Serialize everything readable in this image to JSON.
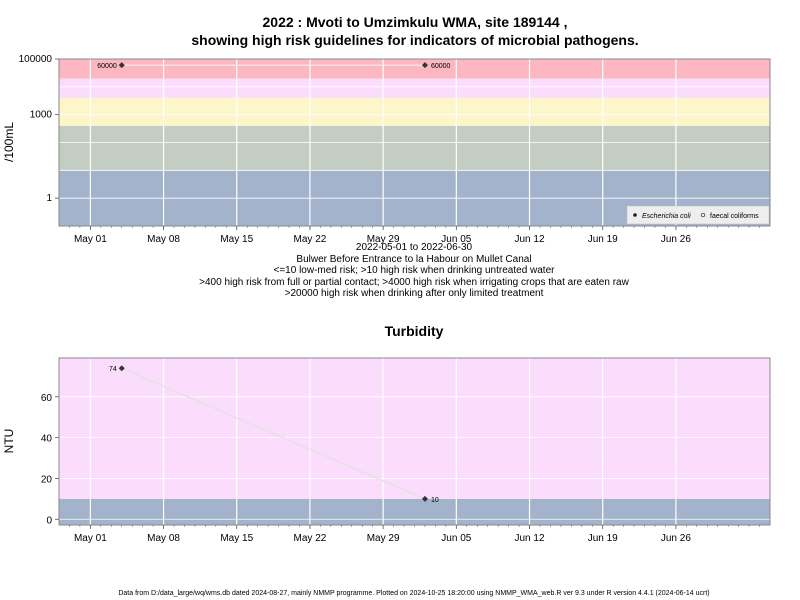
{
  "chart_data": [
    {
      "type": "scatter",
      "title_line1": "2022 : Mvoti to Umzimkulu WMA, site 189144 ,",
      "title_line2": "showing high risk guidelines for indicators of microbial pathogens.",
      "ylabel": "/100mL",
      "yscale": "log",
      "ylim": [
        0.1,
        100000
      ],
      "yticks": [
        {
          "value": 1,
          "label": "1"
        },
        {
          "value": 1000,
          "label": "1000"
        },
        {
          "value": 100000,
          "label": "100000"
        }
      ],
      "xlim": [
        "2022-04-28",
        "2022-07-05"
      ],
      "xticks": [
        "May 01",
        "May 08",
        "May 15",
        "May 22",
        "May 29",
        "Jun 05",
        "Jun 12",
        "Jun 19",
        "Jun 26"
      ],
      "xtick_dates": [
        "2022-05-01",
        "2022-05-08",
        "2022-05-15",
        "2022-05-22",
        "2022-05-29",
        "2022-06-05",
        "2022-06-12",
        "2022-06-19",
        "2022-06-26"
      ],
      "bands": [
        {
          "from": 0.1,
          "to": 10,
          "color": "#a3b3cb"
        },
        {
          "from": 10,
          "to": 400,
          "color": "#c3cdc2"
        },
        {
          "from": 400,
          "to": 4000,
          "color": "#fcf6c9"
        },
        {
          "from": 4000,
          "to": 20000,
          "color": "#fcdcfc"
        },
        {
          "from": 20000,
          "to": 100000,
          "color": "#fdb7c1"
        }
      ],
      "series": [
        {
          "name": "Escherichia coli",
          "marker": "filled",
          "points": [
            {
              "x": "2022-05-04",
              "y": 60000,
              "label": "60000"
            },
            {
              "x": "2022-06-02",
              "y": 60000,
              "label": "60000"
            }
          ]
        },
        {
          "name": "faecal coliforms",
          "marker": "open",
          "points": []
        }
      ],
      "legend_position": "bottom-right",
      "grid": true,
      "subtitle_lines": [
        "2022-05-01 to 2022-06-30",
        "Bulwer Before Entrance to la Habour on Mullet Canal",
        "<=10 low-med risk; >10 high risk when drinking untreated water",
        ">400 high risk from full or partial contact; >4000 high risk when irrigating crops that are eaten raw",
        ">20000 high risk when drinking after only limited treatment"
      ]
    },
    {
      "type": "line",
      "title": "Turbidity",
      "ylabel": "NTU",
      "ylim": [
        -2.8,
        79
      ],
      "yticks": [
        0,
        20,
        40,
        60
      ],
      "xlim": [
        "2022-04-28",
        "2022-07-05"
      ],
      "xticks": [
        "May 01",
        "May 08",
        "May 15",
        "May 22",
        "May 29",
        "Jun 05",
        "Jun 12",
        "Jun 19",
        "Jun 26"
      ],
      "xtick_dates": [
        "2022-05-01",
        "2022-05-08",
        "2022-05-15",
        "2022-05-22",
        "2022-05-29",
        "2022-06-05",
        "2022-06-12",
        "2022-06-19",
        "2022-06-26"
      ],
      "bands": [
        {
          "from": -2.8,
          "to": 10,
          "color": "#a3b3cb"
        },
        {
          "from": 10,
          "to": 79,
          "color": "#fcdcfc"
        }
      ],
      "series": [
        {
          "points": [
            {
              "x": "2022-05-04",
              "y": 74,
              "label": "74"
            },
            {
              "x": "2022-06-02",
              "y": 10,
              "label": "10"
            }
          ]
        }
      ],
      "grid": true
    }
  ],
  "footer": "Data from D:/data_large/wq/wms.db dated 2024-08-27, mainly NMMP programme. Plotted on 2024-10-25 18:20:00 using NMMP_WMA_web.R ver 9.3 under R version 4.4.1 (2024-06-14 ucrt)"
}
